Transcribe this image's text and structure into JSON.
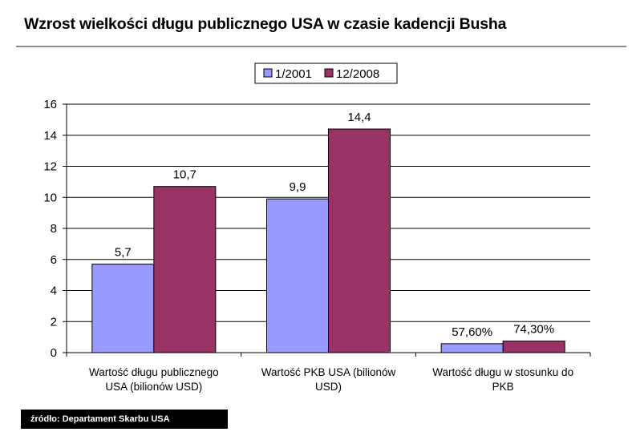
{
  "header": {
    "title": "Wzrost wielkości długu publicznego USA w czasie kadencji Busha"
  },
  "source": {
    "label": "źródło: Departament Skarbu USA"
  },
  "colors": {
    "series_1": "#9999ff",
    "series_2": "#993366",
    "grid": "#000000",
    "rule": "#8c8c8c"
  },
  "chart_data": {
    "type": "bar",
    "title": "",
    "xlabel": "",
    "ylabel": "",
    "ylim": [
      0,
      16
    ],
    "yticks": [
      "0",
      "2",
      "4",
      "6",
      "8",
      "10",
      "12",
      "14",
      "16"
    ],
    "grid": true,
    "legend_position": "top",
    "categories": [
      [
        "Wartość długu publicznego",
        "USA (bilionów USD)"
      ],
      [
        "Wartość PKB USA (bilionów",
        "USD)"
      ],
      [
        "Wartość długu w stosunku do",
        "PKB"
      ]
    ],
    "series": [
      {
        "name": "1/2001",
        "values": [
          5.7,
          9.9,
          0.576
        ],
        "labels": [
          "5,7",
          "9,9",
          "57,60%"
        ]
      },
      {
        "name": "12/2008",
        "values": [
          10.7,
          14.4,
          0.743
        ],
        "labels": [
          "10,7",
          "14,4",
          "74,30%"
        ]
      }
    ]
  }
}
